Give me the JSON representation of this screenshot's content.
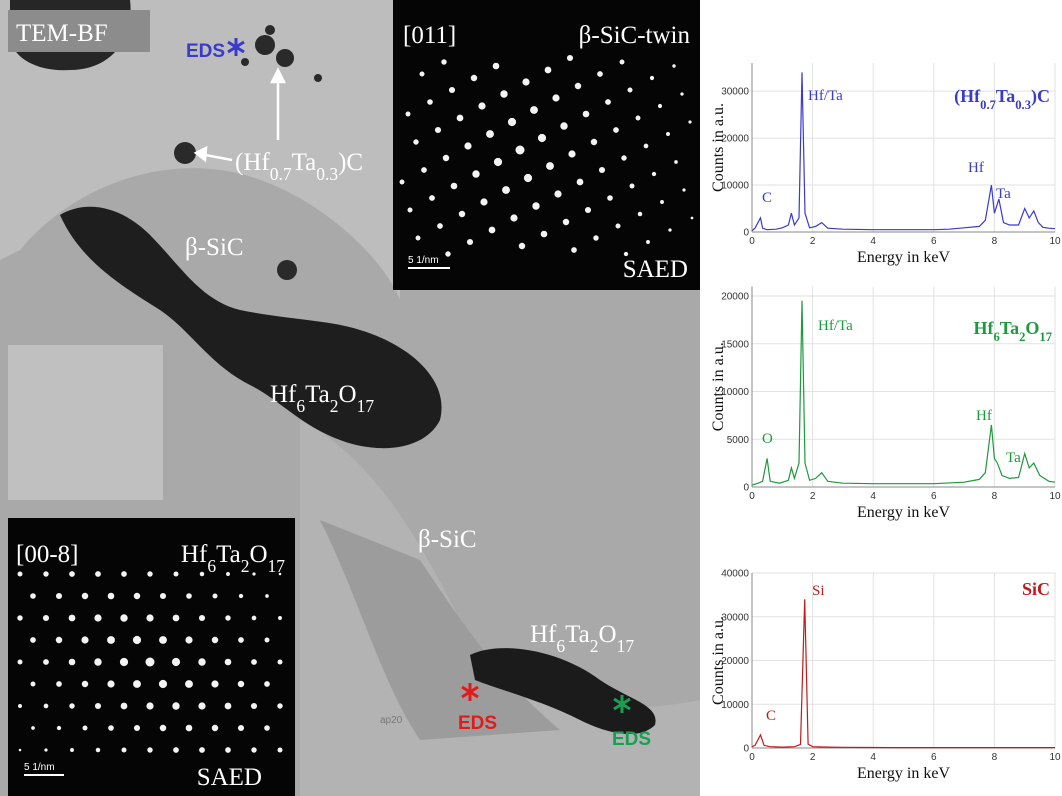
{
  "image": {
    "mode": "TEM-BF",
    "eds_labels": [
      "EDS",
      "EDS",
      "EDS"
    ],
    "phase_labels": [
      "(Hf0.7Ta0.3)C",
      "β-SiC",
      "Hf6Ta2O17",
      "β-SiC",
      "Hf6Ta2O17"
    ],
    "faint_label": "ap20",
    "saed_top": {
      "zone": "[011]",
      "phase": "β-SiC-twin",
      "scale": "5 1/nm",
      "label": "SAED"
    },
    "saed_bottom": {
      "zone": "[00-8]",
      "phase": "Hf6Ta2O17",
      "scale": "5 1/nm",
      "label": "SAED"
    }
  },
  "chart_data": [
    {
      "type": "line",
      "title": "(Hf0.7Ta0.3)C",
      "color": "#3a3acb",
      "x_label": "Energy in keV",
      "y_label": "Counts in a.u.",
      "annotations": [
        "C",
        "Hf/Ta",
        "Hf",
        "Ta"
      ],
      "x": [
        0,
        0.1,
        0.28,
        0.35,
        0.5,
        0.8,
        1.0,
        1.2,
        1.3,
        1.4,
        1.55,
        1.65,
        1.75,
        1.9,
        2.1,
        2.3,
        2.5,
        3,
        4,
        5,
        6,
        6.5,
        7,
        7.5,
        7.7,
        7.9,
        8.0,
        8.15,
        8.3,
        8.5,
        8.8,
        9.0,
        9.15,
        9.3,
        9.45,
        9.6,
        9.8,
        10
      ],
      "values": [
        300,
        800,
        3000,
        800,
        500,
        600,
        900,
        1500,
        4000,
        1500,
        3000,
        34000,
        4000,
        900,
        1200,
        2000,
        800,
        600,
        500,
        500,
        500,
        600,
        900,
        1200,
        2500,
        10000,
        4000,
        7000,
        2000,
        1500,
        1500,
        5000,
        3000,
        4500,
        2000,
        1000,
        800,
        700
      ],
      "xlim": [
        0,
        10
      ],
      "xticks": [
        0,
        2,
        4,
        6,
        8,
        10
      ],
      "ylim": [
        0,
        36000
      ],
      "yticks": [
        0,
        10000,
        20000,
        30000
      ],
      "grid": true
    },
    {
      "type": "line",
      "title": "Hf6Ta2O17",
      "color": "#1c9a3c",
      "x_label": "Energy in keV",
      "y_label": "Counts in a.u.",
      "annotations": [
        "Hf/Ta",
        "O",
        "Hf",
        "Ta"
      ],
      "x": [
        0,
        0.2,
        0.35,
        0.5,
        0.6,
        0.9,
        1.2,
        1.3,
        1.4,
        1.55,
        1.65,
        1.75,
        1.9,
        2.1,
        2.3,
        2.5,
        3,
        4,
        5,
        6,
        7,
        7.5,
        7.7,
        7.9,
        8.0,
        8.1,
        8.25,
        8.5,
        8.8,
        9.0,
        9.15,
        9.3,
        9.5,
        9.8,
        10
      ],
      "values": [
        200,
        400,
        600,
        3000,
        600,
        400,
        700,
        2000,
        900,
        2500,
        19500,
        2500,
        700,
        900,
        1500,
        600,
        400,
        350,
        350,
        350,
        500,
        800,
        1500,
        6500,
        3000,
        2500,
        1200,
        900,
        1000,
        3500,
        2000,
        2500,
        1200,
        600,
        500
      ],
      "xlim": [
        0,
        10
      ],
      "xticks": [
        0,
        2,
        4,
        6,
        8,
        10
      ],
      "ylim": [
        0,
        21000
      ],
      "yticks": [
        0,
        5000,
        10000,
        15000,
        20000
      ],
      "grid": true
    },
    {
      "type": "line",
      "title": "SiC",
      "color": "#c21a1a",
      "x_label": "Energy in keV",
      "y_label": "Counts in a.u.",
      "annotations": [
        "Si",
        "C"
      ],
      "x": [
        0,
        0.1,
        0.28,
        0.4,
        0.6,
        1.0,
        1.4,
        1.6,
        1.74,
        1.85,
        2.0,
        2.5,
        3,
        4,
        5,
        6,
        7,
        8,
        9,
        10
      ],
      "values": [
        300,
        600,
        3000,
        600,
        300,
        200,
        300,
        800,
        34000,
        900,
        300,
        200,
        150,
        120,
        100,
        100,
        100,
        100,
        100,
        100
      ],
      "xlim": [
        0,
        10
      ],
      "xticks": [
        0,
        2,
        4,
        6,
        8,
        10
      ],
      "ylim": [
        0,
        40000
      ],
      "yticks": [
        0,
        10000,
        20000,
        30000,
        40000
      ],
      "grid": true
    }
  ]
}
